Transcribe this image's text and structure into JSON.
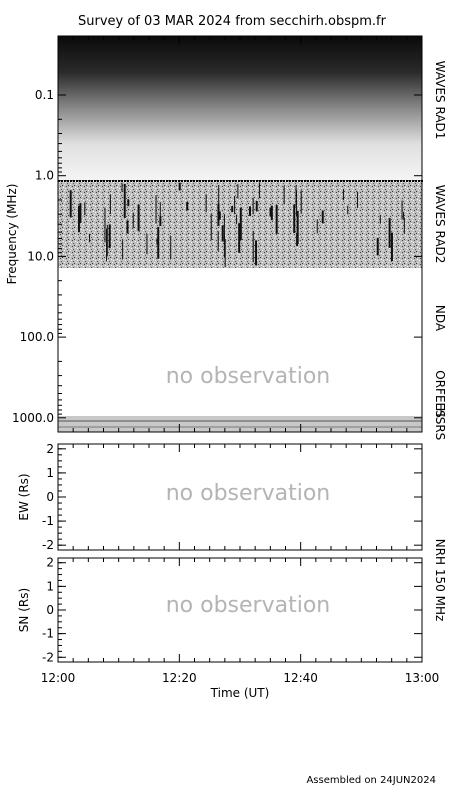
{
  "title": "Survey of 03 MAR 2024 from secchirh.obspm.fr",
  "footer": "Assembled on 24JUN2024",
  "no_observation": "no observation",
  "colors": {
    "text": "#000000",
    "no_obs_text": "#b4b4b4",
    "background": "#ffffff"
  },
  "chart_data": [
    {
      "type": "heatmap",
      "name": "dynamic-spectrum",
      "ylabel": "Frequency (MHz)",
      "y_scale": "log",
      "y_inverted": true,
      "ylim": [
        0.03,
        1400
      ],
      "y_ticks": [
        {
          "v": 0.1,
          "label": "0.1"
        },
        {
          "v": 1,
          "label": "1.0"
        },
        {
          "v": 10,
          "label": "10.0"
        },
        {
          "v": 100,
          "label": "100.0"
        },
        {
          "v": 1000,
          "label": "1000.0"
        }
      ],
      "bands": [
        {
          "label": "WAVES RAD1",
          "range": [
            0.03,
            1.05
          ],
          "status": "observed"
        },
        {
          "label": "WAVES RAD2",
          "range": [
            1.05,
            14
          ],
          "status": "observed"
        },
        {
          "label": "NDA",
          "range": [
            14,
            100
          ],
          "status": "no observation"
        },
        {
          "label": "ORFEES",
          "range": [
            100,
            1000
          ],
          "status": "no observation"
        },
        {
          "label": "HSRS",
          "range": [
            1000,
            1400
          ],
          "status": "observed"
        }
      ]
    },
    {
      "type": "scatter",
      "name": "nrh-ew",
      "ylabel": "EW (Rs)",
      "ylim": [
        -2.2,
        2.2
      ],
      "y_ticks": [
        -2,
        -1,
        0,
        1,
        2
      ],
      "status": "no observation"
    },
    {
      "type": "scatter",
      "name": "nrh-sn",
      "ylabel": "SN (Rs)",
      "ylim": [
        -2.2,
        2.2
      ],
      "y_ticks": [
        -2,
        -1,
        0,
        1,
        2
      ],
      "status": "no observation"
    }
  ],
  "shared_x": {
    "xlabel": "Time (UT)",
    "xlim": [
      "12:00",
      "13:00"
    ],
    "tick_labels": [
      "12:00",
      "12:20",
      "12:40",
      "13:00"
    ]
  },
  "nrh_label": "NRH 150 MHz"
}
